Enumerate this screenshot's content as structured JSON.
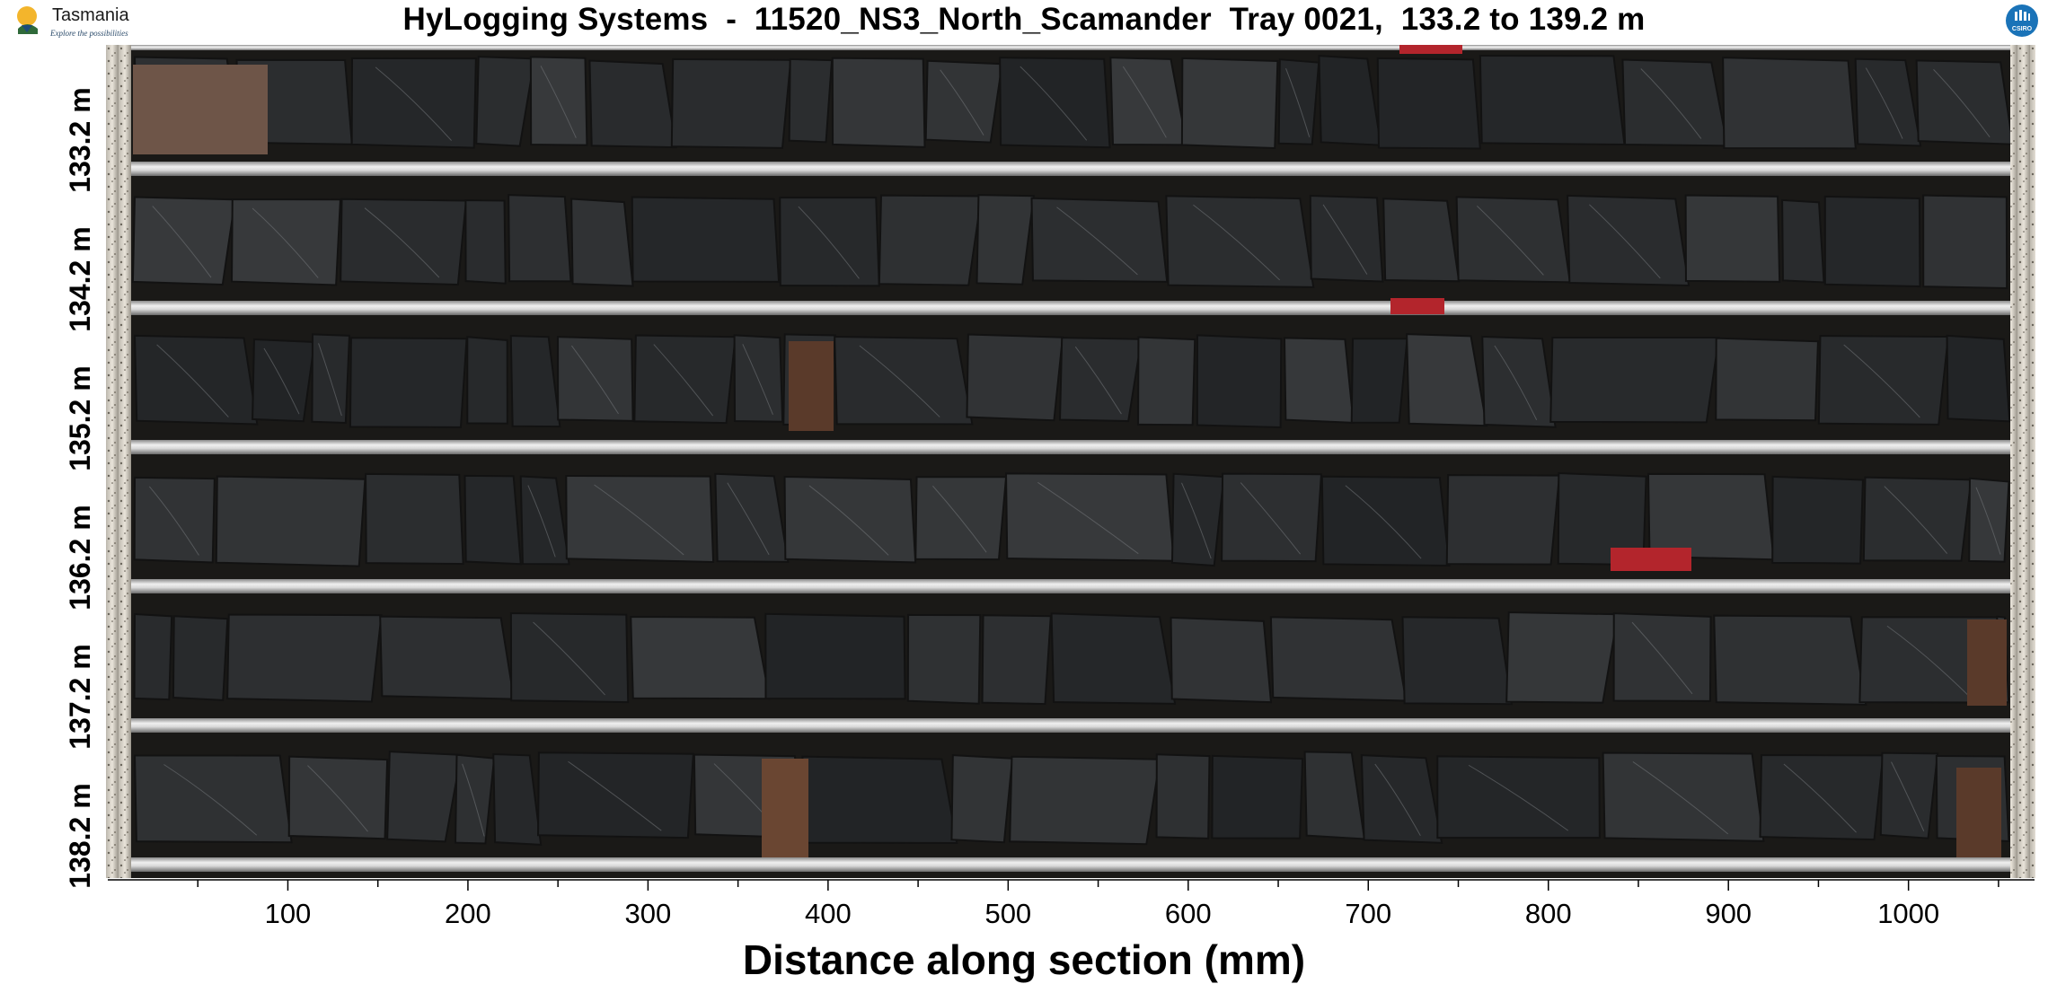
{
  "header": {
    "title": "HyLogging Systems  -  11520_NS3_North_Scamander  Tray 0021,  133.2 to 139.2 m",
    "logo_left": {
      "word": "Tasmania",
      "tagline": "Explore the possibilities"
    },
    "logo_right": {
      "word": "CSIRO",
      "icon": "csiro-logo-icon"
    }
  },
  "rows": [
    {
      "depth_label": "133.2 m"
    },
    {
      "depth_label": "134.2 m"
    },
    {
      "depth_label": "135.2 m"
    },
    {
      "depth_label": "136.2 m"
    },
    {
      "depth_label": "137.2 m"
    },
    {
      "depth_label": "138.2 m"
    }
  ],
  "axis": {
    "title": "Distance along section (mm)",
    "tick_labels": [
      "100",
      "200",
      "300",
      "400",
      "500",
      "600",
      "700",
      "800",
      "900",
      "1000"
    ],
    "range_mm": [
      0,
      1070
    ],
    "major_step_mm": 100,
    "minor_step_mm": 50
  },
  "colors": {
    "rock": "#2c2e2f",
    "rock_light": "#3d4042",
    "rail": "#c9c9c9",
    "tray_bg": "#1a1917",
    "tag_red": "#b3252c"
  }
}
